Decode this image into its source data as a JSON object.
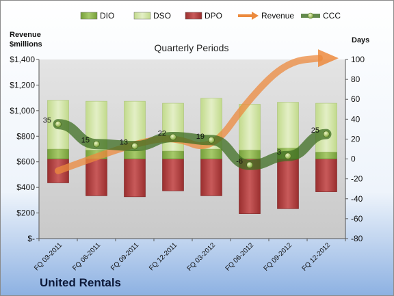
{
  "company": "United Rentals",
  "chart_data": {
    "type": "bar",
    "title": "Quarterly Periods",
    "y_left_label": [
      "Revenue",
      "$millions"
    ],
    "y_right_label": "Days",
    "y_left_ticks": [
      "$-",
      "$200",
      "$400",
      "$600",
      "$800",
      "$1,000",
      "$1,200",
      "$1,400"
    ],
    "y_left_range": [
      0,
      1400
    ],
    "y_right_ticks": [
      "-80",
      "-60",
      "-40",
      "-20",
      "0",
      "20",
      "40",
      "60",
      "80",
      "100"
    ],
    "y_right_range": [
      -80,
      100
    ],
    "categories": [
      "FQ 03-2011",
      "FQ 06-2011",
      "FQ 09-2011",
      "FQ 12-2011",
      "FQ 03-2012",
      "FQ 06-2012",
      "FQ 09-2012",
      "FQ 12-2012"
    ],
    "legend": [
      "DIO",
      "DSO",
      "DPO",
      "Revenue",
      "CCC"
    ],
    "series": [
      {
        "name": "DIO",
        "type": "stacked-bar",
        "axis": "right",
        "values": [
          10,
          9,
          9,
          8,
          10,
          9,
          11,
          7
        ]
      },
      {
        "name": "DSO",
        "type": "stacked-bar",
        "axis": "right",
        "values": [
          49,
          49,
          49,
          48,
          51,
          46,
          46,
          49
        ]
      },
      {
        "name": "DPO",
        "type": "bar-below-zero",
        "axis": "right",
        "values": [
          -24,
          -37,
          -38,
          -32,
          -37,
          -55,
          -50,
          -33
        ]
      },
      {
        "name": "Revenue",
        "type": "trend-arrow",
        "axis": "left",
        "values": [
          530,
          640,
          740,
          800,
          680,
          1100,
          1390,
          1410
        ]
      },
      {
        "name": "CCC",
        "type": "line",
        "axis": "right",
        "values": [
          35,
          15,
          13,
          22,
          19,
          -6,
          3,
          25
        ],
        "labels": [
          "35",
          "15",
          "13",
          "22",
          "19",
          "-6",
          "3",
          "25"
        ]
      }
    ],
    "colors": {
      "DIO": "#8db34d",
      "DSO": "#cfe3a2",
      "DPO": "#b03a3a",
      "Revenue": "#ec8a3d",
      "CCC": "#3e6e22"
    },
    "legend_position": "top",
    "grid": false
  }
}
